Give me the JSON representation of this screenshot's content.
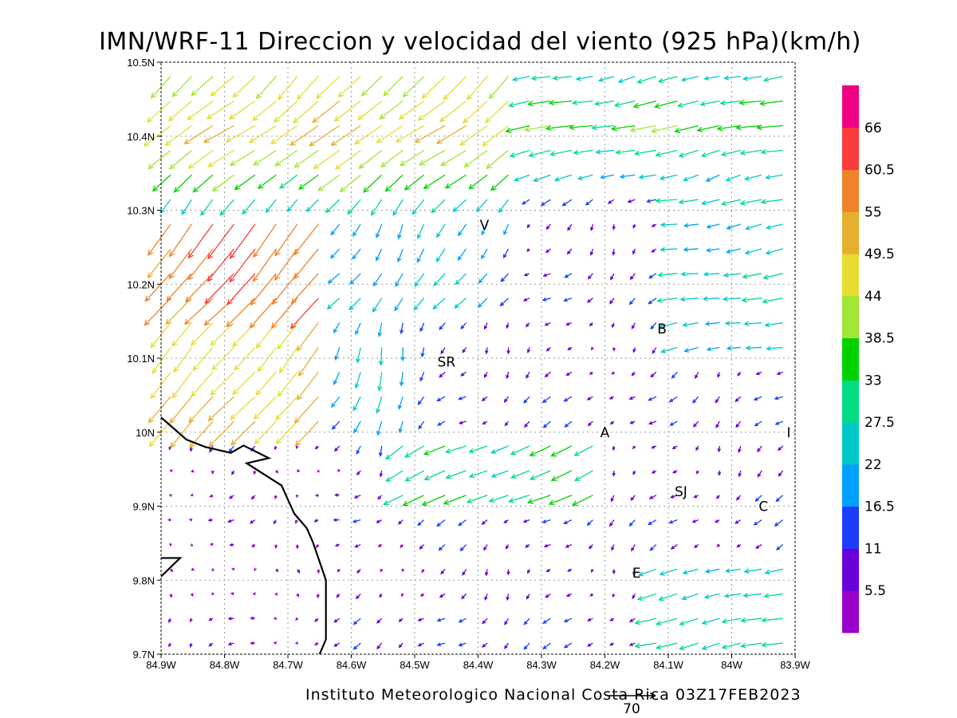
{
  "title": "IMN/WRF-11 Direccion y velocidad del viento (925 hPa)(km/h)",
  "footer": "Instituto Meteorologico Nacional Costa Rica 03Z17FEB2023",
  "reference_vector": {
    "label": "70",
    "speed": 70
  },
  "map": {
    "lon_range": [
      -84.9,
      -83.9
    ],
    "lat_range": [
      9.7,
      10.5
    ],
    "x_ticks": [
      {
        "lon": -84.9,
        "label": "84.9W"
      },
      {
        "lon": -84.8,
        "label": "84.8W"
      },
      {
        "lon": -84.7,
        "label": "84.7W"
      },
      {
        "lon": -84.6,
        "label": "84.6W"
      },
      {
        "lon": -84.5,
        "label": "84.5W"
      },
      {
        "lon": -84.4,
        "label": "84.4W"
      },
      {
        "lon": -84.3,
        "label": "84.3W"
      },
      {
        "lon": -84.2,
        "label": "84.2W"
      },
      {
        "lon": -84.1,
        "label": "84.1W"
      },
      {
        "lon": -84.0,
        "label": "84W"
      },
      {
        "lon": -83.9,
        "label": "83.9W"
      }
    ],
    "y_ticks": [
      {
        "lat": 9.7,
        "label": "9.7N"
      },
      {
        "lat": 9.8,
        "label": "9.8N"
      },
      {
        "lat": 9.9,
        "label": "9.9N"
      },
      {
        "lat": 10.0,
        "label": "10N"
      },
      {
        "lat": 10.1,
        "label": "10.1N"
      },
      {
        "lat": 10.2,
        "label": "10.2N"
      },
      {
        "lat": 10.3,
        "label": "10.3N"
      },
      {
        "lat": 10.4,
        "label": "10.4N"
      },
      {
        "lat": 10.5,
        "label": "10.5N"
      }
    ],
    "places": [
      {
        "code": "V",
        "lon": -84.39,
        "lat": 10.28
      },
      {
        "code": "B",
        "lon": -84.11,
        "lat": 10.14
      },
      {
        "code": "SR",
        "lon": -84.45,
        "lat": 10.095
      },
      {
        "code": "A",
        "lon": -84.2,
        "lat": 10.0
      },
      {
        "code": "I",
        "lon": -83.91,
        "lat": 10.0
      },
      {
        "code": "SJ",
        "lon": -84.08,
        "lat": 9.92
      },
      {
        "code": "C",
        "lon": -83.95,
        "lat": 9.9
      },
      {
        "code": "E",
        "lon": -84.15,
        "lat": 9.81
      }
    ],
    "coastline": [
      [
        -84.9,
        10.02
      ],
      [
        -84.86,
        9.99
      ],
      [
        -84.83,
        9.98
      ],
      [
        -84.79,
        9.972
      ],
      [
        -84.77,
        9.982
      ],
      [
        -84.73,
        9.965
      ],
      [
        -84.765,
        9.958
      ],
      [
        -84.71,
        9.928
      ],
      [
        -84.69,
        9.89
      ],
      [
        -84.67,
        9.87
      ],
      [
        -84.66,
        9.85
      ],
      [
        -84.64,
        9.8
      ],
      [
        -84.64,
        9.75
      ],
      [
        -84.64,
        9.72
      ],
      [
        -84.65,
        9.7
      ]
    ],
    "island": [
      [
        -84.9,
        9.805
      ],
      [
        -84.87,
        9.83
      ],
      [
        -84.9,
        9.83
      ]
    ]
  },
  "colorbar": {
    "colors": [
      "#9900cc",
      "#6a00dc",
      "#1e3cff",
      "#00a0ff",
      "#00c8c8",
      "#00dc82",
      "#00d200",
      "#a0e632",
      "#e6dc32",
      "#e6af2d",
      "#f08228",
      "#fa3c3c",
      "#f00082"
    ],
    "labels": [
      "5.5",
      "11",
      "16.5",
      "22",
      "27.5",
      "33",
      "38.5",
      "44",
      "49.5",
      "55",
      "60.5",
      "66"
    ]
  }
}
